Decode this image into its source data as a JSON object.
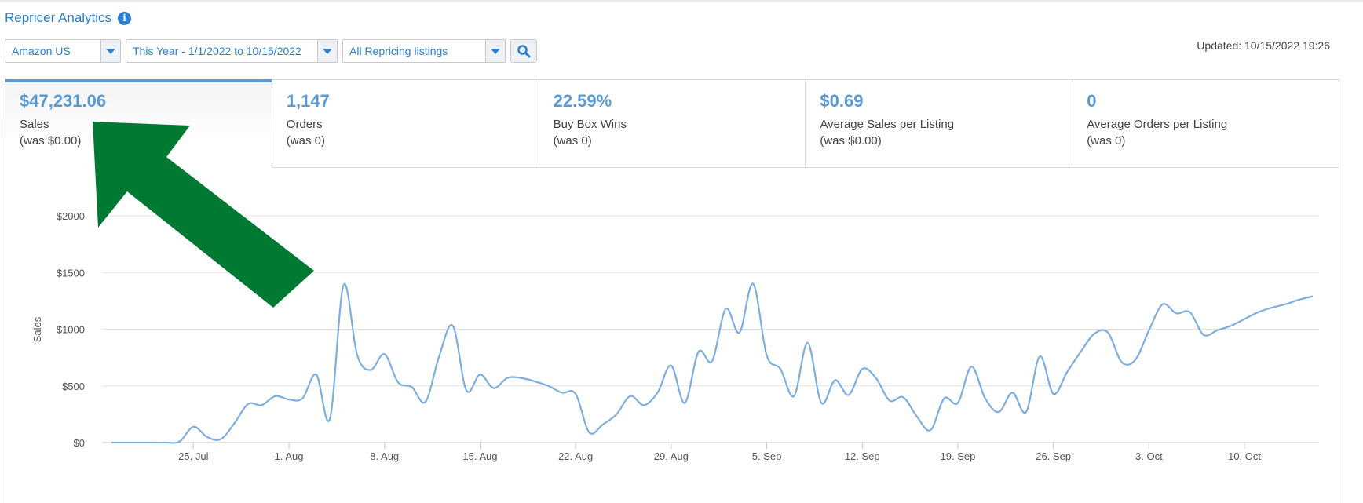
{
  "header": {
    "title": "Repricer Analytics",
    "info_icon": "info-icon"
  },
  "filters": {
    "marketplace": "Amazon US",
    "date_range": "This Year - 1/1/2022 to 10/15/2022",
    "listings": "All Repricing listings",
    "search_icon": "search-icon"
  },
  "updated": "Updated: 10/15/2022 19:26",
  "kpis": [
    {
      "value": "$47,231.06",
      "label": "Sales",
      "was": "(was $0.00)",
      "active": true
    },
    {
      "value": "1,147",
      "label": "Orders",
      "was": "(was 0)",
      "active": false
    },
    {
      "value": "22.59%",
      "label": "Buy Box Wins",
      "was": "(was 0)",
      "active": false
    },
    {
      "value": "$0.69",
      "label": "Average Sales per Listing",
      "was": "(was $0.00)",
      "active": false
    },
    {
      "value": "0",
      "label": "Average Orders per Listing",
      "was": "(was 0)",
      "active": false
    }
  ],
  "annotation": {
    "type": "arrow",
    "color": "#007a33",
    "points_to": "Sales KPI"
  },
  "colors": {
    "accent": "#2a7fd0",
    "kpi_value": "#5b9bd5",
    "line": "#7eaee0",
    "grid": "#e2e2e2"
  },
  "chart_data": {
    "type": "line",
    "ylabel": "Sales",
    "ylim": [
      0,
      2000
    ],
    "yticks": [
      "$0",
      "$500",
      "$1000",
      "$1500",
      "$2000"
    ],
    "ytick_values": [
      0,
      500,
      1000,
      1500,
      2000
    ],
    "xticks": [
      "25. Jul",
      "1. Aug",
      "8. Aug",
      "15. Aug",
      "22. Aug",
      "29. Aug",
      "5. Sep",
      "12. Sep",
      "19. Sep",
      "26. Sep",
      "3. Oct",
      "10. Oct"
    ],
    "xtick_days": [
      6,
      13,
      20,
      27,
      34,
      41,
      48,
      55,
      62,
      69,
      76,
      83
    ],
    "x_start": "2022-07-19",
    "x_end": "2022-10-15",
    "grid": true,
    "series": [
      {
        "name": "Sales",
        "x": [
          0,
          1,
          2,
          3,
          4,
          5,
          6,
          7,
          8,
          9,
          10,
          11,
          12,
          13,
          14,
          15,
          16,
          17,
          18,
          19,
          20,
          21,
          22,
          23,
          24,
          25,
          26,
          27,
          28,
          29,
          30,
          31,
          32,
          33,
          34,
          35,
          36,
          37,
          38,
          39,
          40,
          41,
          42,
          43,
          44,
          45,
          46,
          47,
          48,
          49,
          50,
          51,
          52,
          53,
          54,
          55,
          56,
          57,
          58,
          59,
          60,
          61,
          62,
          63,
          64,
          65,
          66,
          67,
          68,
          69,
          70,
          71,
          72,
          73,
          74,
          75,
          76,
          77,
          78,
          79,
          80,
          81,
          82,
          83,
          84,
          85,
          86,
          87,
          88
        ],
        "y": [
          0,
          0,
          0,
          0,
          0,
          10,
          140,
          50,
          30,
          170,
          340,
          330,
          410,
          380,
          390,
          600,
          210,
          1390,
          770,
          640,
          780,
          530,
          490,
          360,
          760,
          1030,
          460,
          600,
          480,
          570,
          570,
          540,
          500,
          440,
          430,
          90,
          160,
          250,
          410,
          330,
          440,
          680,
          350,
          800,
          720,
          1180,
          970,
          1400,
          770,
          650,
          410,
          880,
          350,
          550,
          420,
          650,
          570,
          370,
          400,
          230,
          110,
          390,
          350,
          670,
          390,
          270,
          440,
          270,
          760,
          430,
          620,
          800,
          960,
          970,
          710,
          730,
          990,
          1220,
          1140,
          1150,
          950,
          990,
          1030,
          1090,
          1150,
          1190,
          1220,
          1260,
          1290
        ]
      }
    ]
  }
}
